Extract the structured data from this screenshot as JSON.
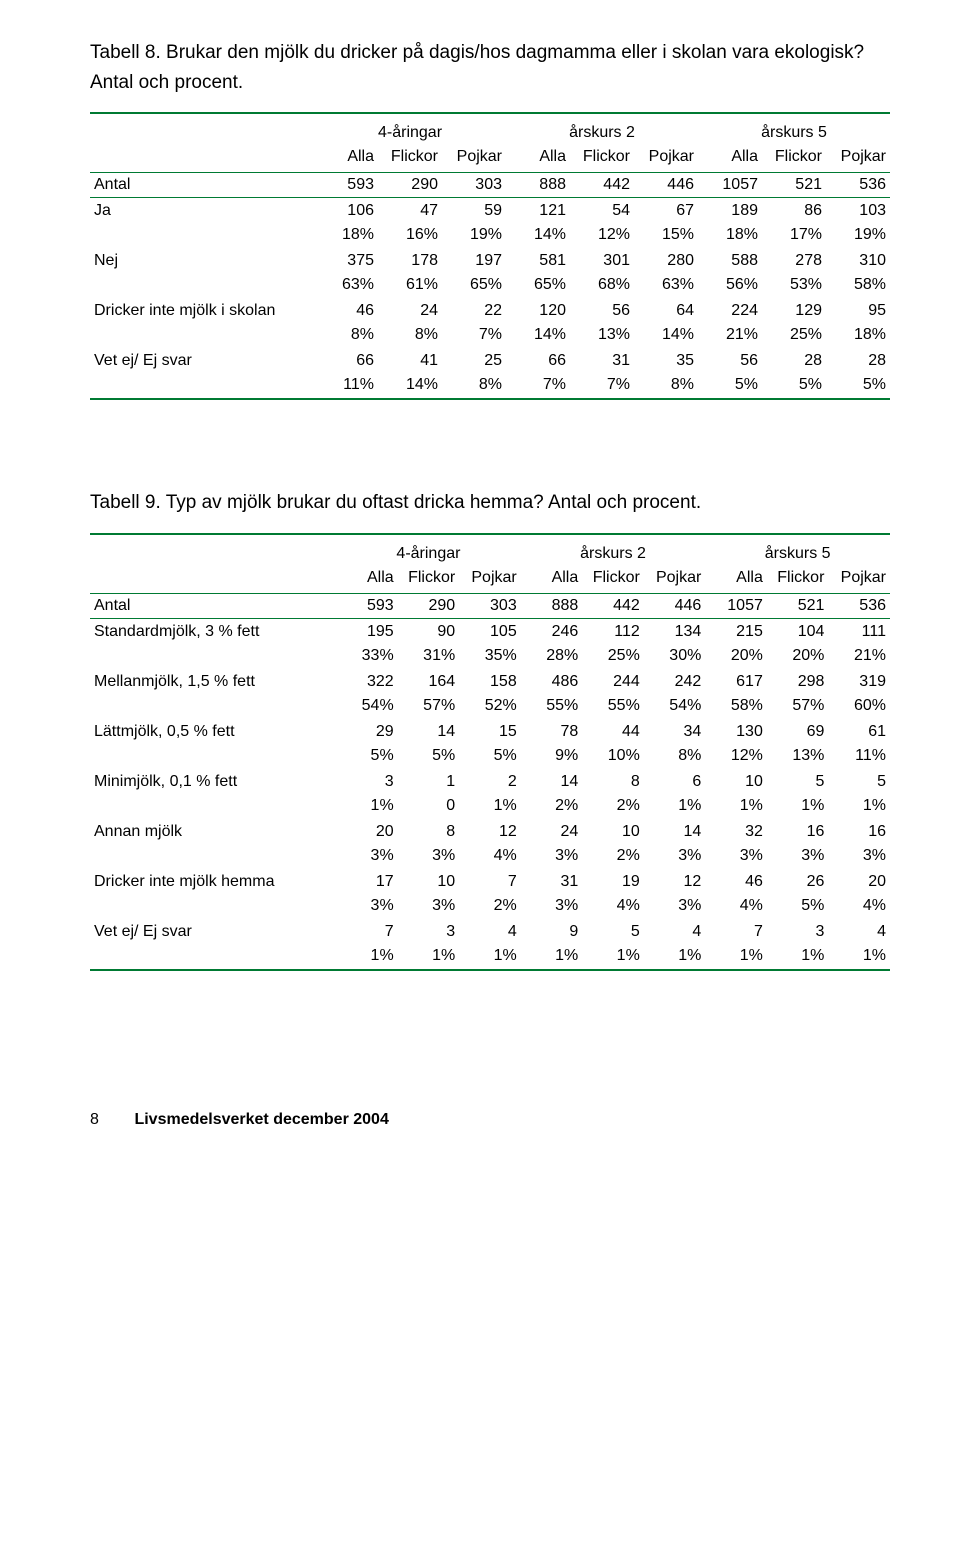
{
  "table8": {
    "title": "Tabell 8. Brukar den mjölk du dricker på dagis/hos dagmamma eller i skolan vara ekologisk?",
    "subtitle": "Antal och procent.",
    "groupHeaders": [
      "4-åringar",
      "årskurs 2",
      "årskurs 5"
    ],
    "subHeaders": [
      "Alla",
      "Flickor",
      "Pojkar",
      "Alla",
      "Flickor",
      "Pojkar",
      "Alla",
      "Flickor",
      "Pojkar"
    ],
    "antalLabel": "Antal",
    "antal": [
      "593",
      "290",
      "303",
      "888",
      "442",
      "446",
      "1057",
      "521",
      "536"
    ],
    "rows": [
      {
        "label": "Ja",
        "vals": [
          "106",
          "47",
          "59",
          "121",
          "54",
          "67",
          "189",
          "86",
          "103"
        ],
        "pcts": [
          "18%",
          "16%",
          "19%",
          "14%",
          "12%",
          "15%",
          "18%",
          "17%",
          "19%"
        ]
      },
      {
        "label": "Nej",
        "vals": [
          "375",
          "178",
          "197",
          "581",
          "301",
          "280",
          "588",
          "278",
          "310"
        ],
        "pcts": [
          "63%",
          "61%",
          "65%",
          "65%",
          "68%",
          "63%",
          "56%",
          "53%",
          "58%"
        ]
      },
      {
        "label": "Dricker inte mjölk i skolan",
        "vals": [
          "46",
          "24",
          "22",
          "120",
          "56",
          "64",
          "224",
          "129",
          "95"
        ],
        "pcts": [
          "8%",
          "8%",
          "7%",
          "14%",
          "13%",
          "14%",
          "21%",
          "25%",
          "18%"
        ]
      },
      {
        "label": "Vet ej/ Ej svar",
        "vals": [
          "66",
          "41",
          "25",
          "66",
          "31",
          "35",
          "56",
          "28",
          "28"
        ],
        "pcts": [
          "11%",
          "14%",
          "8%",
          "7%",
          "7%",
          "8%",
          "5%",
          "5%",
          "5%"
        ]
      }
    ]
  },
  "table9": {
    "title": "Tabell 9. Typ av mjölk brukar du oftast dricka hemma? Antal och procent.",
    "groupHeaders": [
      "4-åringar",
      "årskurs 2",
      "årskurs 5"
    ],
    "subHeaders": [
      "Alla",
      "Flickor",
      "Pojkar",
      "Alla",
      "Flickor",
      "Pojkar",
      "Alla",
      "Flickor",
      "Pojkar"
    ],
    "antalLabel": "Antal",
    "antal": [
      "593",
      "290",
      "303",
      "888",
      "442",
      "446",
      "1057",
      "521",
      "536"
    ],
    "rows": [
      {
        "label": "Standardmjölk, 3 % fett",
        "vals": [
          "195",
          "90",
          "105",
          "246",
          "112",
          "134",
          "215",
          "104",
          "111"
        ],
        "pcts": [
          "33%",
          "31%",
          "35%",
          "28%",
          "25%",
          "30%",
          "20%",
          "20%",
          "21%"
        ]
      },
      {
        "label": "Mellanmjölk, 1,5 % fett",
        "vals": [
          "322",
          "164",
          "158",
          "486",
          "244",
          "242",
          "617",
          "298",
          "319"
        ],
        "pcts": [
          "54%",
          "57%",
          "52%",
          "55%",
          "55%",
          "54%",
          "58%",
          "57%",
          "60%"
        ]
      },
      {
        "label": "Lättmjölk, 0,5 % fett",
        "vals": [
          "29",
          "14",
          "15",
          "78",
          "44",
          "34",
          "130",
          "69",
          "61"
        ],
        "pcts": [
          "5%",
          "5%",
          "5%",
          "9%",
          "10%",
          "8%",
          "12%",
          "13%",
          "11%"
        ]
      },
      {
        "label": "Minimjölk, 0,1 % fett",
        "vals": [
          "3",
          "1",
          "2",
          "14",
          "8",
          "6",
          "10",
          "5",
          "5"
        ],
        "pcts": [
          "1%",
          "0",
          "1%",
          "2%",
          "2%",
          "1%",
          "1%",
          "1%",
          "1%"
        ]
      },
      {
        "label": "Annan mjölk",
        "vals": [
          "20",
          "8",
          "12",
          "24",
          "10",
          "14",
          "32",
          "16",
          "16"
        ],
        "pcts": [
          "3%",
          "3%",
          "4%",
          "3%",
          "2%",
          "3%",
          "3%",
          "3%",
          "3%"
        ]
      },
      {
        "label": "Dricker inte mjölk hemma",
        "vals": [
          "17",
          "10",
          "7",
          "31",
          "19",
          "12",
          "46",
          "26",
          "20"
        ],
        "pcts": [
          "3%",
          "3%",
          "2%",
          "3%",
          "4%",
          "3%",
          "4%",
          "5%",
          "4%"
        ]
      },
      {
        "label": "Vet ej/ Ej svar",
        "vals": [
          "7",
          "3",
          "4",
          "9",
          "5",
          "4",
          "7",
          "3",
          "4"
        ],
        "pcts": [
          "1%",
          "1%",
          "1%",
          "1%",
          "1%",
          "1%",
          "1%",
          "1%",
          "1%"
        ]
      }
    ]
  },
  "footer": {
    "pageNum": "8",
    "publisher": "Livsmedelsverket december 2004"
  },
  "colors": {
    "rule": "#007a33",
    "text": "#000000",
    "bg": "#ffffff"
  }
}
